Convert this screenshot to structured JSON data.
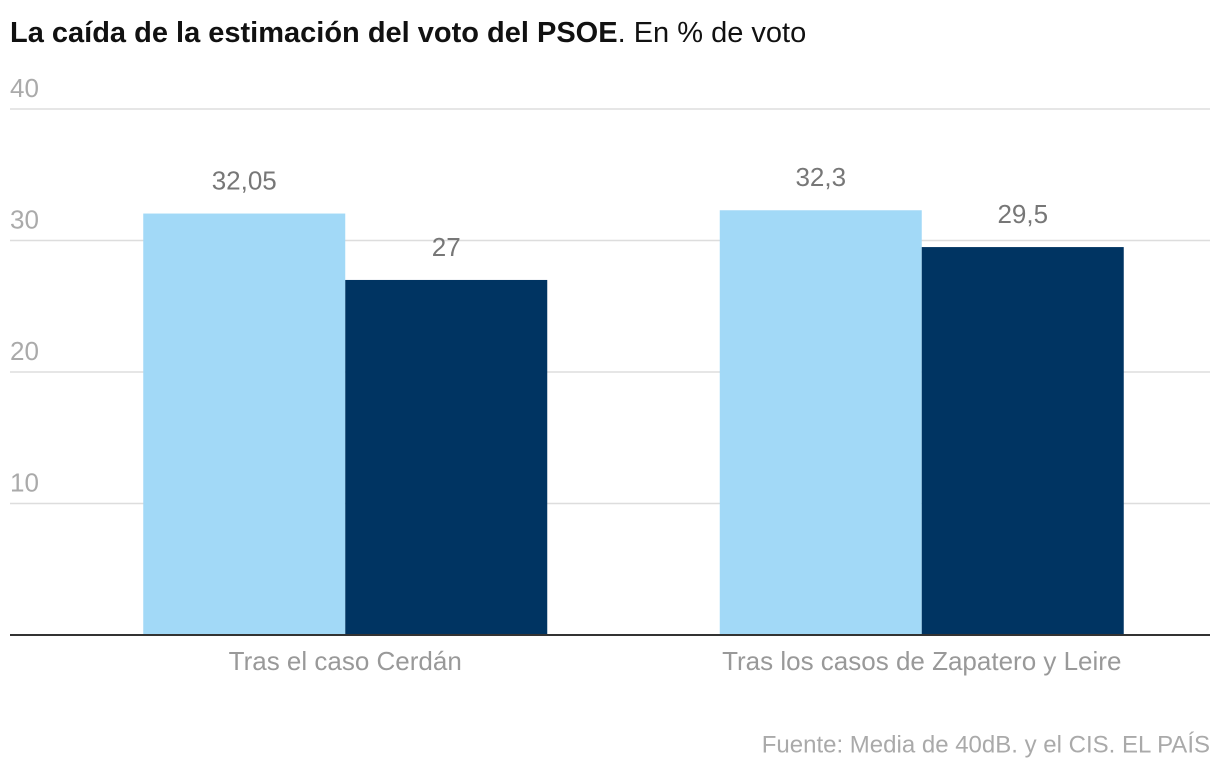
{
  "chart_data": {
    "type": "bar",
    "title": "La caída de la estimación del voto del PSOE",
    "subtitle": ". En % de voto",
    "categories": [
      "Tras el caso Cerdán",
      "Tras los casos de Zapatero y Leire"
    ],
    "series": [
      {
        "color": "#a2d9f7",
        "values": [
          32.05,
          32.3
        ],
        "value_labels": [
          "32,05",
          "32,3"
        ]
      },
      {
        "color": "#003462",
        "values": [
          27,
          29.5
        ],
        "value_labels": [
          "27",
          "29,5"
        ]
      }
    ],
    "ylim": [
      0,
      40
    ],
    "yticks": [
      10,
      20,
      30,
      40
    ],
    "grid": true,
    "source": "Fuente: Media de 40dB. y el CIS. EL PAÍS"
  }
}
